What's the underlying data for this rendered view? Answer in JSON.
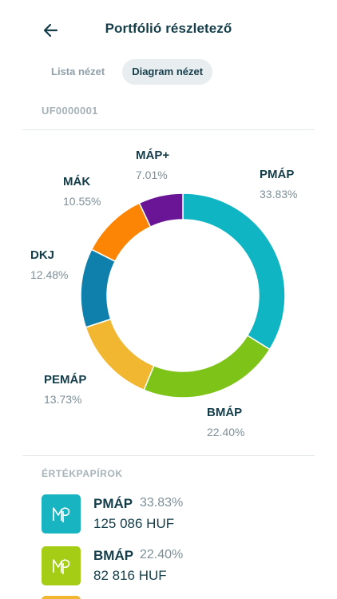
{
  "header": {
    "title": "Portfólió részletező"
  },
  "tabs": [
    {
      "label": "Lista nézet",
      "active": false
    },
    {
      "label": "Diagram nézet",
      "active": true
    }
  ],
  "account": {
    "id": "UF0000001"
  },
  "chart_data": {
    "type": "pie",
    "donut": true,
    "categories": [
      "PMÁP",
      "BMÁP",
      "PEMÁP",
      "DKJ",
      "MÁK",
      "MÁP+"
    ],
    "values": [
      33.83,
      22.4,
      13.73,
      12.48,
      10.55,
      7.01
    ],
    "labels": [
      "33.83%",
      "22.40%",
      "13.73%",
      "12.48%",
      "10.55%",
      "7.01%"
    ],
    "colors": [
      "#0fb5c2",
      "#7ec418",
      "#f2b731",
      "#0f7fac",
      "#fd8505",
      "#6a1496"
    ],
    "start": "top, clockwise"
  },
  "securities_section": {
    "title": "ÉRTÉKPAPÍROK",
    "items": [
      {
        "name": "PMÁP",
        "percent": "33.83%",
        "amount": "125 086 HUF",
        "color": "#18b4c1"
      },
      {
        "name": "BMÁP",
        "percent": "22.40%",
        "amount": "82 816 HUF",
        "color": "#a6cd16"
      }
    ]
  }
}
